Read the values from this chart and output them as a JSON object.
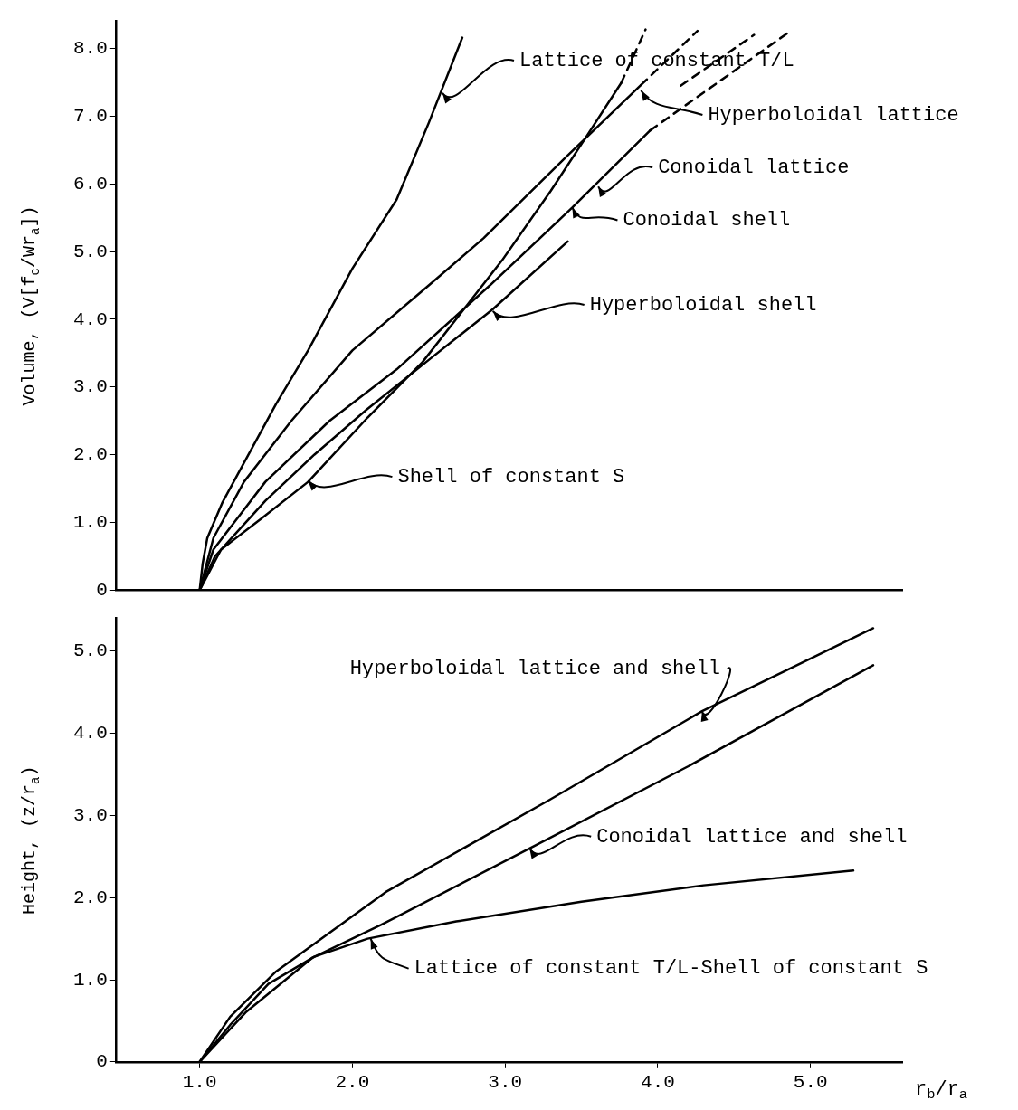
{
  "chart_data": [
    {
      "type": "line",
      "ylabel": "Volume, (V[f$_{c}$/Wr$_{a}$])",
      "xlim": [
        0.45,
        5.6
      ],
      "ylim": [
        0,
        8.4
      ],
      "yticks": [
        0,
        {
          "value": 1,
          "label": "1.0"
        },
        {
          "value": 2,
          "label": "2.0"
        },
        {
          "value": 3,
          "label": "3.0"
        },
        {
          "value": 4,
          "label": "4.0"
        },
        {
          "value": 5,
          "label": "5.0"
        },
        {
          "value": 6,
          "label": "6.0"
        },
        {
          "value": 7,
          "label": "7.0"
        },
        {
          "value": 8,
          "label": "8.0"
        }
      ],
      "tick_labels": "y",
      "grid": false,
      "legend": false,
      "series": [
        {
          "color": "#000000",
          "x": [
            1.0,
            1.02,
            1.05,
            1.15,
            1.29,
            1.5,
            1.71,
            2.0,
            2.29,
            2.5,
            2.72
          ],
          "values": [
            0,
            0.4,
            0.77,
            1.3,
            1.88,
            2.75,
            3.54,
            4.75,
            5.77,
            6.9,
            8.16
          ]
        },
        {
          "color": "#000000",
          "x": [
            1.0,
            1.09,
            1.29,
            1.6,
            2.0,
            2.5,
            2.86,
            3.4,
            3.89
          ],
          "values": [
            0,
            0.77,
            1.6,
            2.5,
            3.54,
            4.5,
            5.2,
            6.4,
            7.46
          ]
        },
        {
          "color": "#000000",
          "x": [
            1.0,
            1.09,
            1.43,
            1.85,
            2.29,
            2.9,
            3.44,
            3.95
          ],
          "values": [
            0,
            0.6,
            1.6,
            2.5,
            3.26,
            4.5,
            5.65,
            6.79
          ]
        },
        {
          "color": "#000000",
          "x": [
            1.0,
            1.1,
            1.43,
            1.75,
            2.09,
            2.5,
            2.92,
            3.41
          ],
          "values": [
            0,
            0.5,
            1.32,
            2.0,
            2.66,
            3.4,
            4.15,
            5.15
          ]
        },
        {
          "color": "#000000",
          "x": [
            1.0,
            1.14,
            1.4,
            1.71,
            2.1,
            2.46,
            2.98,
            3.3,
            3.55,
            3.76
          ],
          "values": [
            0,
            0.6,
            1.05,
            1.6,
            2.55,
            3.37,
            4.87,
            5.9,
            6.76,
            7.49
          ]
        },
        {
          "color": "#000000",
          "line_style": "dashed",
          "x": [
            3.76,
            3.92
          ],
          "values": [
            7.49,
            8.28
          ]
        },
        {
          "color": "#000000",
          "line_style": "dashed",
          "x": [
            3.89,
            4.26
          ],
          "values": [
            7.46,
            8.26
          ]
        },
        {
          "color": "#000000",
          "line_style": "dashed",
          "x": [
            3.95,
            4.87
          ],
          "values": [
            6.79,
            8.26
          ]
        },
        {
          "color": "#000000",
          "line_style": "dashed",
          "x": [
            4.15,
            4.63
          ],
          "values": [
            7.45,
            8.2
          ]
        }
      ],
      "annotations": [
        {
          "text": "Lattice of constant T/L",
          "x": 2.59,
          "y": 7.34
        },
        {
          "text": "Hyperboloidal lattice",
          "x": 3.89,
          "y": 7.38
        },
        {
          "text": "Conoidal lattice",
          "x": 3.61,
          "y": 5.96
        },
        {
          "text": "Conoidal shell",
          "x": 3.44,
          "y": 5.65
        },
        {
          "text": "Hyperboloidal shell",
          "x": 2.92,
          "y": 4.12
        },
        {
          "text": "Shell of constant S",
          "x": 1.71,
          "y": 1.62
        }
      ]
    },
    {
      "type": "line",
      "xlabel": "r$_{b}$/r$_{a}$",
      "ylabel": "Height, (z/r$_{a}$)",
      "xlim": [
        0.45,
        5.6
      ],
      "ylim": [
        0,
        5.4
      ],
      "xticks": [
        {
          "value": 1,
          "label": "1.0"
        },
        {
          "value": 2,
          "label": "2.0"
        },
        {
          "value": 3,
          "label": "3.0"
        },
        {
          "value": 4,
          "label": "4.0"
        },
        {
          "value": 5,
          "label": "5.0"
        }
      ],
      "yticks": [
        0,
        {
          "value": 1,
          "label": "1.0"
        },
        {
          "value": 2,
          "label": "2.0"
        },
        {
          "value": 3,
          "label": "3.0"
        },
        {
          "value": 4,
          "label": "4.0"
        },
        {
          "value": 5,
          "label": "5.0"
        }
      ],
      "grid": false,
      "legend": false,
      "series": [
        {
          "color": "#000000",
          "x": [
            1.0,
            1.2,
            1.5,
            2.22,
            3.29,
            4.29,
            5.41
          ],
          "values": [
            0,
            0.55,
            1.1,
            2.07,
            3.19,
            4.27,
            5.28
          ]
        },
        {
          "color": "#000000",
          "x": [
            1.0,
            1.3,
            1.74,
            2.19,
            3.16,
            4.2,
            5.41
          ],
          "values": [
            0,
            0.6,
            1.27,
            1.67,
            2.6,
            3.6,
            4.83
          ]
        },
        {
          "color": "#000000",
          "x": [
            1.0,
            1.2,
            1.45,
            1.75,
            2.1,
            2.68,
            3.5,
            4.3,
            5.28
          ],
          "values": [
            0,
            0.45,
            0.95,
            1.28,
            1.5,
            1.71,
            1.95,
            2.15,
            2.33
          ]
        }
      ],
      "annotations": [
        {
          "text": "Hyperboloidal lattice and shell",
          "x": 4.29,
          "y": 4.27
        },
        {
          "text": "Conoidal lattice and shell",
          "x": 3.16,
          "y": 2.6
        },
        {
          "text": "Lattice of constant T/L-Shell of constant S",
          "x": 2.12,
          "y": 1.5
        }
      ]
    }
  ]
}
